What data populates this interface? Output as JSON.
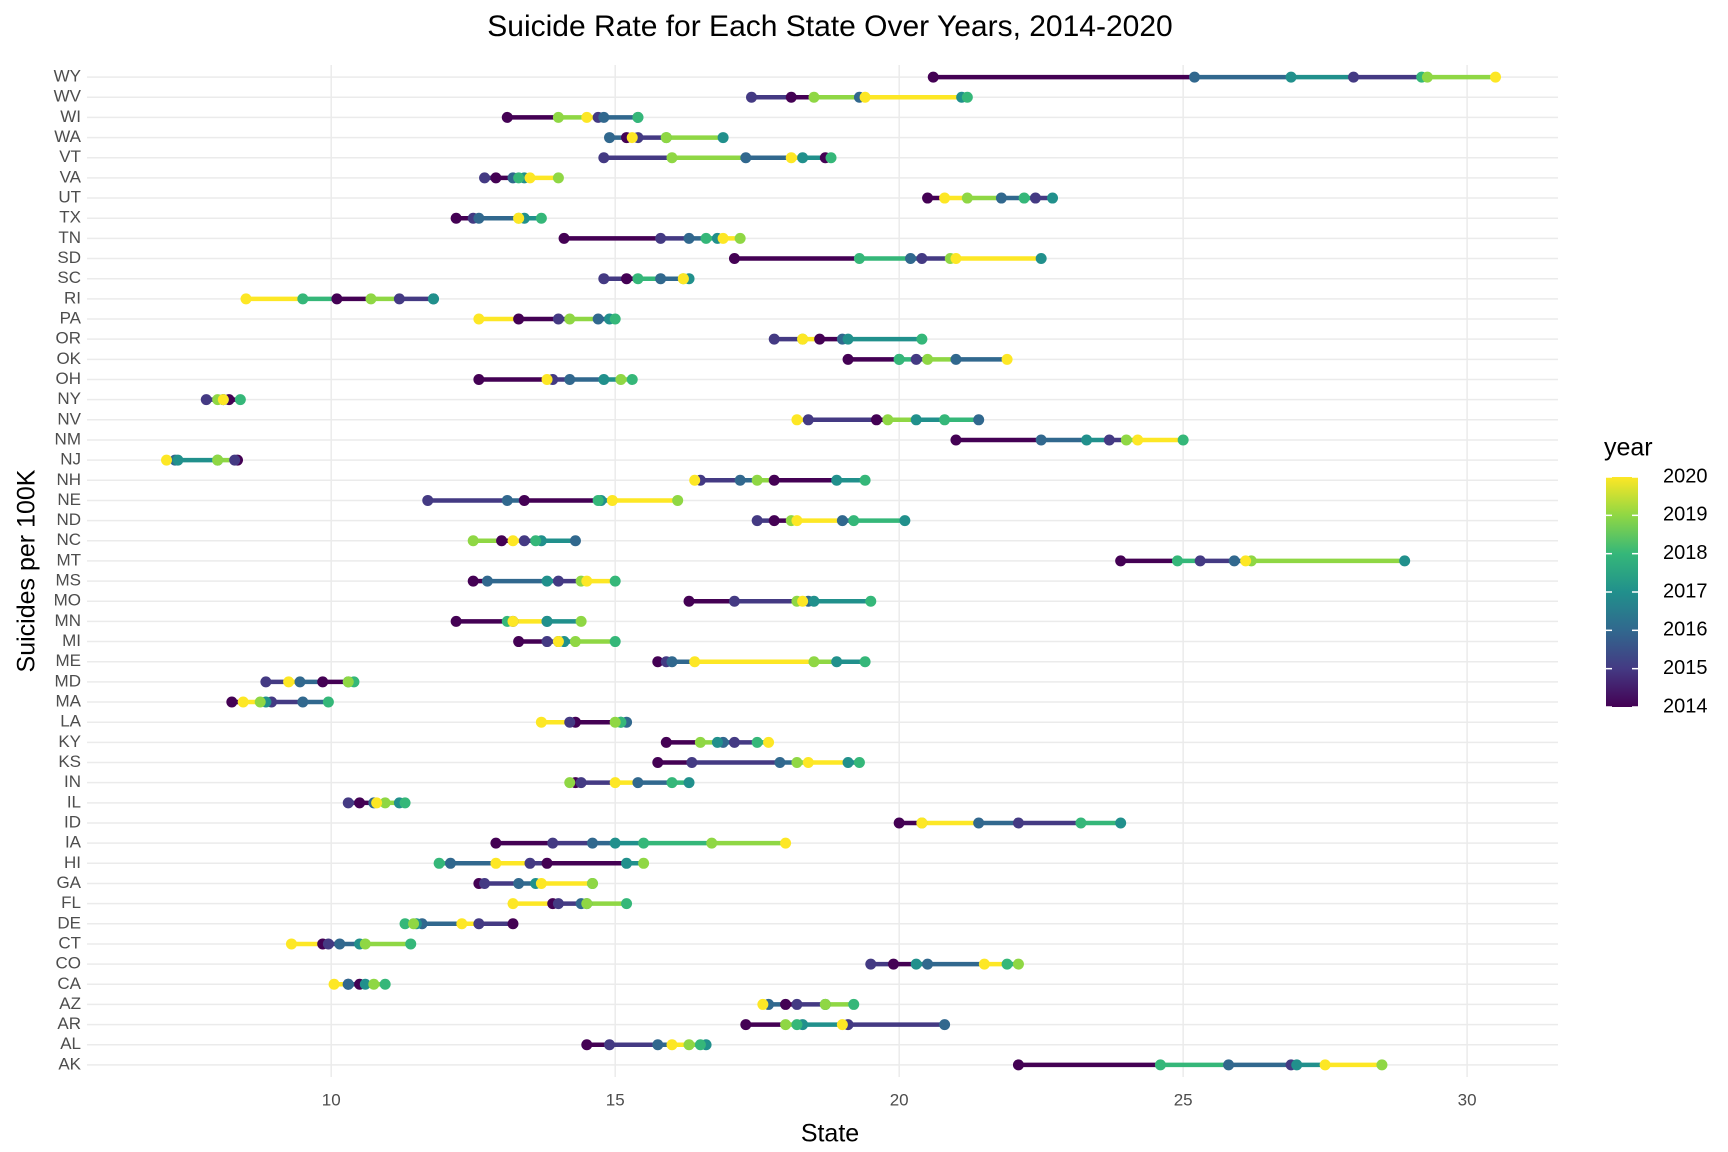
{
  "chart_data": {
    "type": "dotline",
    "title": "Suicide Rate for Each State Over Years, 2014-2020",
    "x_label": "State",
    "y_label": "Suicides per 100K",
    "legend_title": "year",
    "categories": [
      "AK",
      "AL",
      "AR",
      "AZ",
      "CA",
      "CO",
      "CT",
      "DE",
      "FL",
      "GA",
      "HI",
      "IA",
      "ID",
      "IL",
      "IN",
      "KS",
      "KY",
      "LA",
      "MA",
      "MD",
      "ME",
      "MI",
      "MN",
      "MO",
      "MS",
      "MT",
      "NC",
      "ND",
      "NE",
      "NH",
      "NJ",
      "NM",
      "NV",
      "NY",
      "OH",
      "OK",
      "OR",
      "PA",
      "RI",
      "SC",
      "SD",
      "TN",
      "TX",
      "UT",
      "VA",
      "VT",
      "WA",
      "WI",
      "WV",
      "WY"
    ],
    "series": [
      {
        "name": "2014",
        "color": "#440154",
        "values": [
          22.1,
          14.5,
          17.3,
          18.0,
          10.5,
          19.9,
          9.85,
          13.2,
          13.9,
          12.6,
          13.8,
          12.9,
          20.0,
          10.5,
          14.3,
          15.75,
          15.9,
          14.3,
          8.25,
          9.85,
          15.75,
          13.3,
          12.2,
          16.3,
          12.5,
          23.9,
          13.0,
          17.8,
          13.4,
          17.8,
          8.35,
          21.0,
          19.6,
          8.2,
          12.6,
          19.1,
          18.6,
          13.3,
          10.1,
          15.2,
          17.1,
          14.1,
          12.2,
          20.5,
          12.9,
          18.7,
          15.2,
          13.1,
          18.1,
          20.6
        ]
      },
      {
        "name": "2015",
        "color": "#443a83",
        "values": [
          26.9,
          14.9,
          19.1,
          18.2,
          10.3,
          19.5,
          9.95,
          12.6,
          14.0,
          12.7,
          13.5,
          13.9,
          22.1,
          10.3,
          14.4,
          16.35,
          17.1,
          14.2,
          8.95,
          8.85,
          15.9,
          13.8,
          13.2,
          17.1,
          14.0,
          25.3,
          13.4,
          17.5,
          11.7,
          16.5,
          8.3,
          23.7,
          18.4,
          7.8,
          13.9,
          20.3,
          17.8,
          14.0,
          11.2,
          14.8,
          20.4,
          15.8,
          12.5,
          22.4,
          12.7,
          14.8,
          15.4,
          14.7,
          17.4,
          28.0
        ]
      },
      {
        "name": "2016",
        "color": "#31688e",
        "values": [
          25.8,
          15.75,
          20.8,
          17.7,
          10.3,
          20.5,
          10.15,
          11.6,
          14.4,
          13.3,
          12.1,
          14.6,
          21.4,
          10.75,
          15.4,
          17.9,
          16.9,
          15.2,
          9.5,
          9.45,
          16.0,
          14.0,
          13.8,
          18.4,
          12.75,
          25.9,
          14.3,
          19.0,
          13.1,
          17.2,
          7.25,
          22.5,
          21.4,
          8.1,
          14.2,
          21.0,
          19.0,
          14.7,
          11.8,
          15.8,
          20.2,
          16.3,
          12.6,
          21.8,
          13.2,
          17.3,
          14.9,
          14.8,
          19.3,
          25.2
        ]
      },
      {
        "name": "2017",
        "color": "#21908c",
        "values": [
          27.0,
          16.6,
          18.3,
          18.7,
          10.6,
          20.3,
          10.5,
          11.5,
          14.5,
          13.6,
          15.2,
          15.0,
          23.9,
          11.2,
          16.3,
          19.1,
          16.8,
          15.1,
          8.85,
          10.3,
          18.9,
          14.1,
          13.8,
          18.5,
          13.8,
          28.9,
          13.7,
          20.1,
          14.75,
          18.9,
          7.3,
          23.3,
          20.3,
          8.1,
          14.8,
          20.0,
          19.1,
          14.9,
          11.8,
          16.3,
          22.5,
          16.8,
          13.4,
          22.7,
          13.4,
          18.3,
          16.9,
          15.4,
          21.1,
          26.9
        ]
      },
      {
        "name": "2018",
        "color": "#35b779",
        "values": [
          24.6,
          16.5,
          18.2,
          19.2,
          10.95,
          21.9,
          11.4,
          11.3,
          15.2,
          14.6,
          11.9,
          15.5,
          23.2,
          11.3,
          16.0,
          19.3,
          17.5,
          15.1,
          9.95,
          10.4,
          19.4,
          15.0,
          13.1,
          19.5,
          15.0,
          24.9,
          13.6,
          19.2,
          14.7,
          19.4,
          8.0,
          25.0,
          20.8,
          8.4,
          15.3,
          20.0,
          20.4,
          15.0,
          9.5,
          15.4,
          19.3,
          16.6,
          13.7,
          22.2,
          13.3,
          18.8,
          15.9,
          15.4,
          21.2,
          29.2
        ]
      },
      {
        "name": "2019",
        "color": "#8fd744",
        "values": [
          28.5,
          16.3,
          18.0,
          18.7,
          10.75,
          22.1,
          10.6,
          11.45,
          14.5,
          14.6,
          15.5,
          16.7,
          20.4,
          10.95,
          14.2,
          18.2,
          16.5,
          15.0,
          8.75,
          10.3,
          18.5,
          14.3,
          14.4,
          18.2,
          14.4,
          26.2,
          12.5,
          18.1,
          16.1,
          17.5,
          8.0,
          24.0,
          19.8,
          8.0,
          15.1,
          20.5,
          18.3,
          14.2,
          10.7,
          16.2,
          20.9,
          17.2,
          13.3,
          21.2,
          14.0,
          16.0,
          15.9,
          14.0,
          18.5,
          29.3
        ]
      },
      {
        "name": "2020",
        "color": "#fde725",
        "values": [
          27.5,
          16.0,
          19.0,
          17.6,
          10.05,
          21.5,
          9.3,
          12.3,
          13.2,
          13.7,
          12.9,
          18.0,
          20.4,
          10.8,
          15.0,
          18.4,
          17.7,
          13.7,
          8.45,
          9.25,
          16.4,
          14.0,
          13.2,
          18.3,
          14.5,
          26.1,
          13.2,
          18.2,
          14.95,
          16.4,
          7.1,
          24.2,
          18.2,
          8.1,
          13.8,
          21.9,
          18.3,
          12.6,
          8.5,
          16.2,
          21.0,
          16.9,
          13.3,
          20.8,
          13.5,
          18.1,
          15.3,
          14.5,
          19.4,
          30.5
        ]
      }
    ],
    "xlim": [
      5.7,
      31.6
    ],
    "xticks": [
      10,
      15,
      20,
      25,
      30
    ],
    "grid": true
  }
}
